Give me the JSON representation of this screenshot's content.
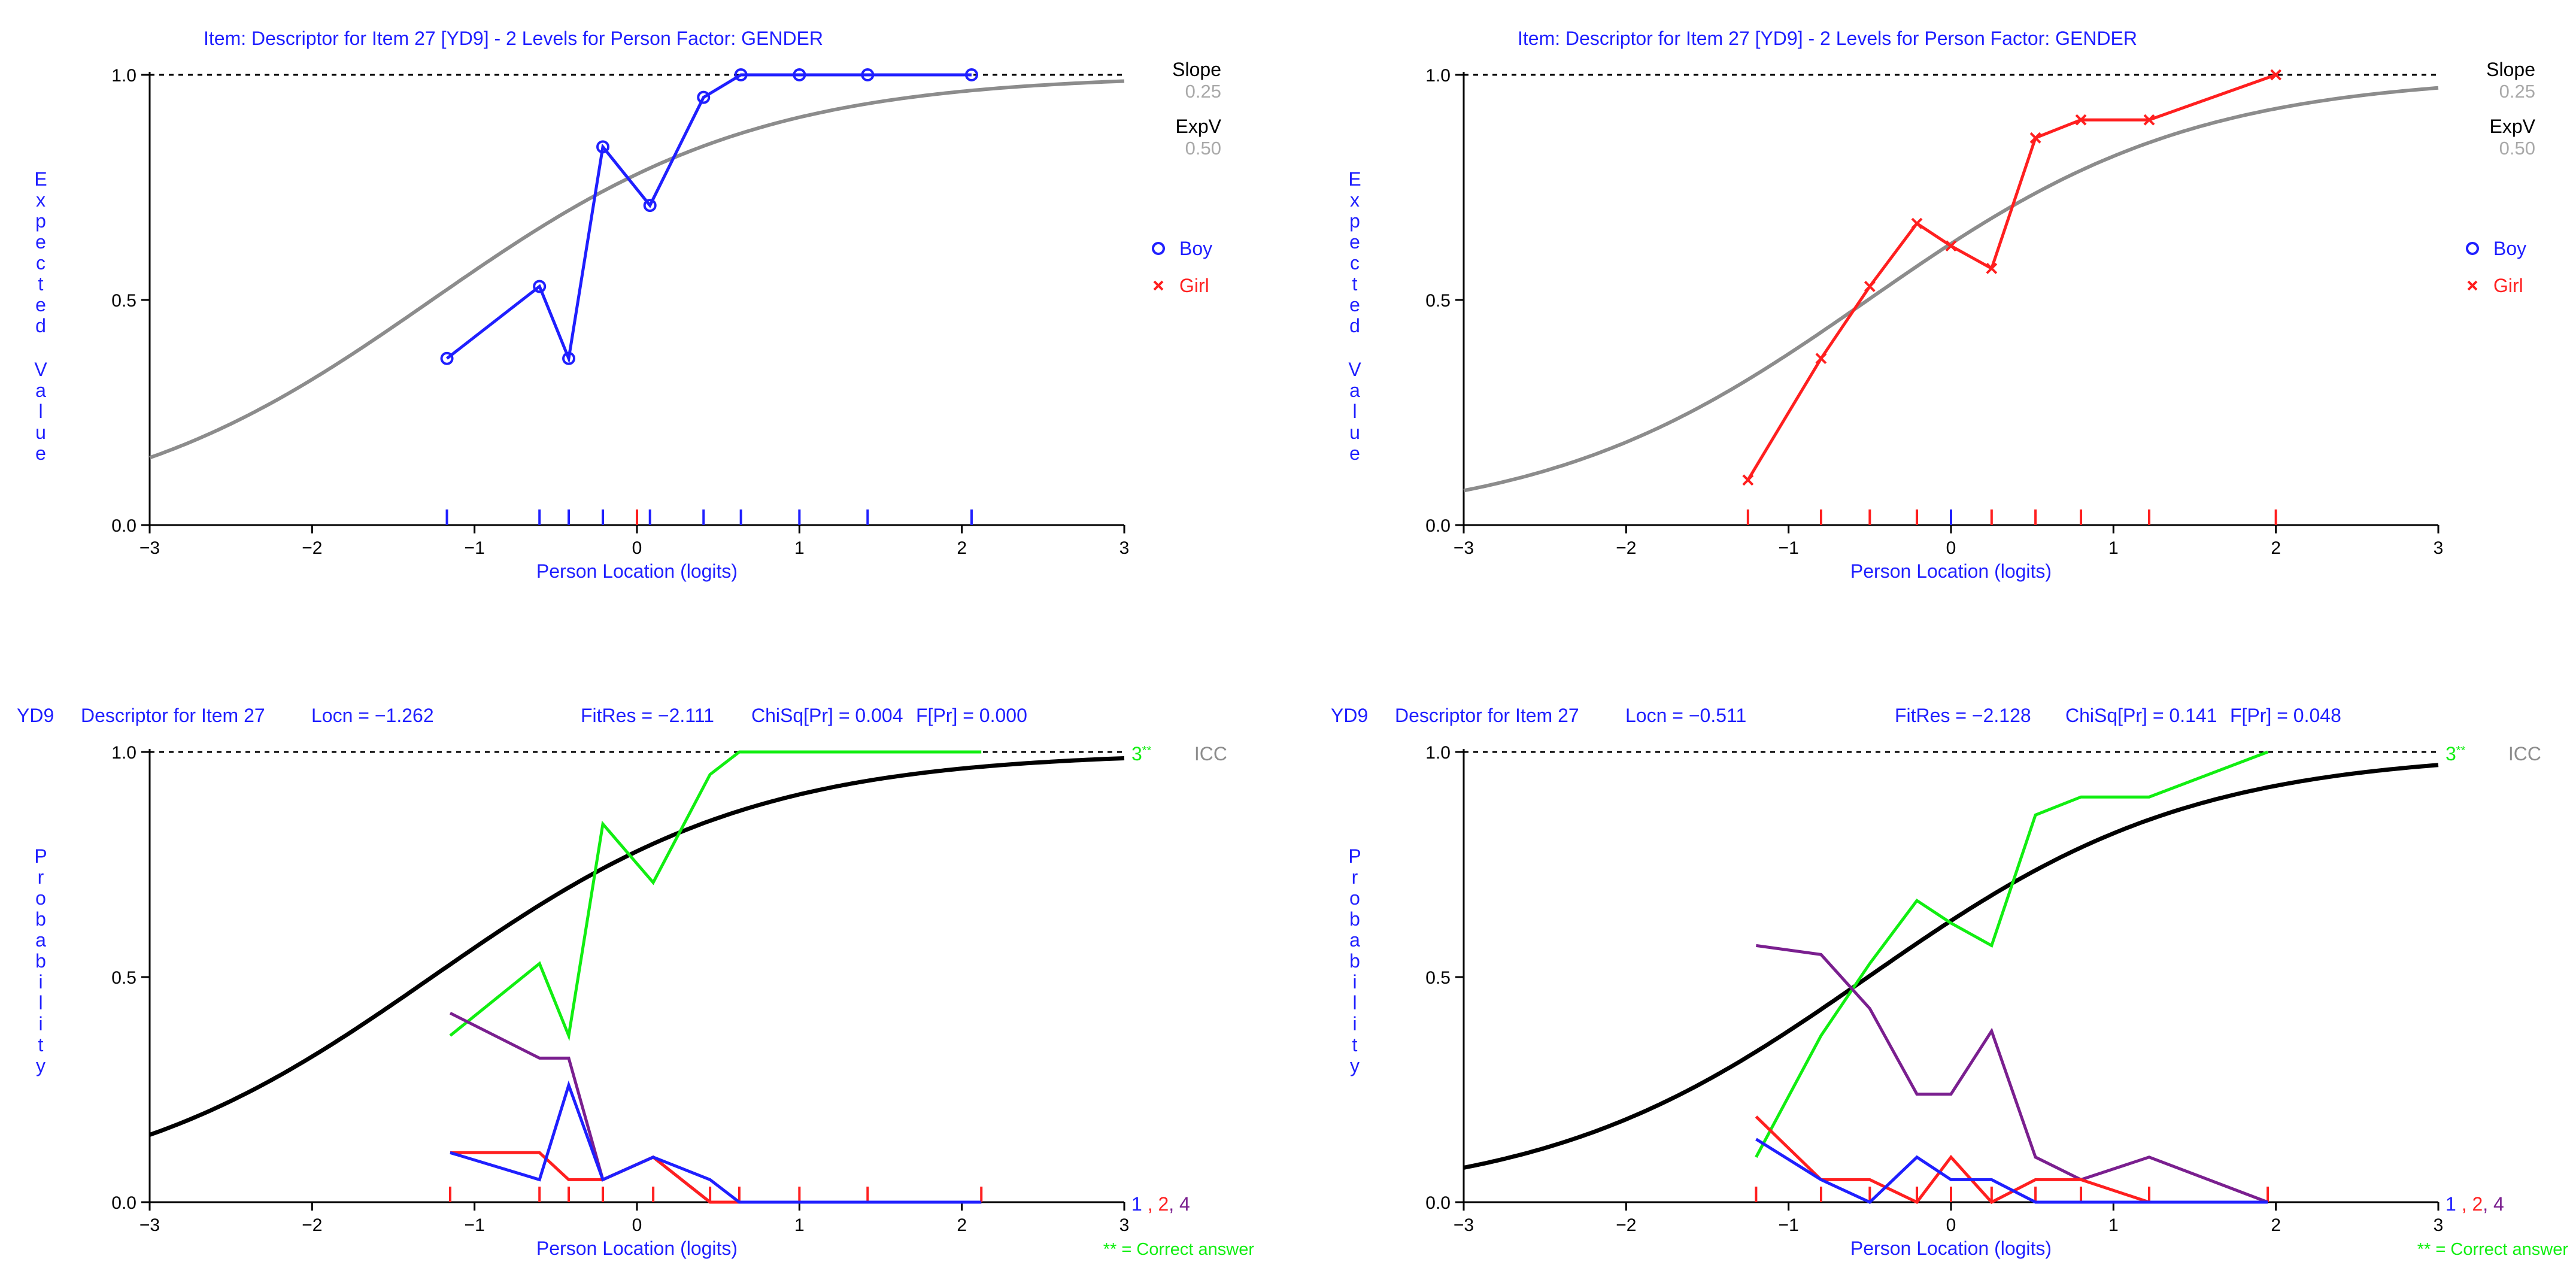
{
  "colors": {
    "blue": "#1f1fff",
    "red": "#ff1f1f",
    "green": "#11ee11",
    "purple": "#7a1f8f",
    "grey": "#8c8c8c",
    "lightgrey": "#a9a9a9",
    "black": "#000000"
  },
  "chart_data": [
    {
      "id": "tl",
      "type": "line",
      "title": "Item: Descriptor for Item 27 [YD9] - 2 Levels for Person Factor: GENDER",
      "xlabel": "Person Location (logits)",
      "ylabel": "Expected Value",
      "xlim": [
        -3,
        3
      ],
      "ylim": [
        0,
        1
      ],
      "xticks": [
        "−3",
        "−2",
        "−1",
        "0",
        "1",
        "2",
        "3"
      ],
      "yticks": [
        "0.0",
        "0.5",
        "1.0"
      ],
      "info": {
        "slope_label": "Slope",
        "slope_value": "0.25",
        "expv_label": "ExpV",
        "expv_value": "0.50"
      },
      "legend": [
        {
          "label": "Boy",
          "marker": "o",
          "color": "blue"
        },
        {
          "label": "Girl",
          "marker": "x",
          "color": "red"
        }
      ],
      "curve": {
        "location": -1.262,
        "discrimination": 1.0,
        "color": "grey"
      },
      "series": [
        {
          "name": "Boy",
          "color": "blue",
          "marker": "o",
          "x": [
            -1.17,
            -0.6,
            -0.42,
            -0.21,
            0.08,
            0.41,
            0.64,
            1.0,
            1.42,
            2.06
          ],
          "y": [
            0.37,
            0.53,
            0.37,
            0.84,
            0.71,
            0.95,
            1.0,
            1.0,
            1.0,
            1.0
          ]
        }
      ],
      "ticks_bottom": [
        {
          "x": -1.17,
          "color": "blue"
        },
        {
          "x": -0.6,
          "color": "blue"
        },
        {
          "x": -0.42,
          "color": "blue"
        },
        {
          "x": -0.21,
          "color": "blue"
        },
        {
          "x": 0.0,
          "color": "red"
        },
        {
          "x": 0.08,
          "color": "blue"
        },
        {
          "x": 0.41,
          "color": "blue"
        },
        {
          "x": 0.64,
          "color": "blue"
        },
        {
          "x": 1.0,
          "color": "blue"
        },
        {
          "x": 1.42,
          "color": "blue"
        },
        {
          "x": 2.06,
          "color": "blue"
        }
      ]
    },
    {
      "id": "tr",
      "type": "line",
      "title": "Item: Descriptor for Item 27 [YD9] - 2 Levels for Person Factor: GENDER",
      "xlabel": "Person Location (logits)",
      "ylabel": "Expected Value",
      "xlim": [
        -3,
        3
      ],
      "ylim": [
        0,
        1
      ],
      "xticks": [
        "−3",
        "−2",
        "−1",
        "0",
        "1",
        "2",
        "3"
      ],
      "yticks": [
        "0.0",
        "0.5",
        "1.0"
      ],
      "info": {
        "slope_label": "Slope",
        "slope_value": "0.25",
        "expv_label": "ExpV",
        "expv_value": "0.50"
      },
      "legend": [
        {
          "label": "Boy",
          "marker": "o",
          "color": "blue"
        },
        {
          "label": "Girl",
          "marker": "x",
          "color": "red"
        }
      ],
      "curve": {
        "location": -0.511,
        "discrimination": 1.0,
        "color": "grey"
      },
      "series": [
        {
          "name": "Girl",
          "color": "red",
          "marker": "x",
          "x": [
            -1.25,
            -0.8,
            -0.5,
            -0.21,
            0.0,
            0.25,
            0.52,
            0.8,
            1.22,
            2.0
          ],
          "y": [
            0.1,
            0.37,
            0.53,
            0.67,
            0.62,
            0.57,
            0.86,
            0.9,
            0.9,
            1.0
          ]
        }
      ],
      "ticks_bottom": [
        {
          "x": -1.25,
          "color": "red"
        },
        {
          "x": -0.8,
          "color": "red"
        },
        {
          "x": -0.5,
          "color": "red"
        },
        {
          "x": -0.21,
          "color": "red"
        },
        {
          "x": 0.0,
          "color": "blue"
        },
        {
          "x": 0.25,
          "color": "red"
        },
        {
          "x": 0.52,
          "color": "red"
        },
        {
          "x": 0.8,
          "color": "red"
        },
        {
          "x": 1.22,
          "color": "red"
        },
        {
          "x": 2.0,
          "color": "red"
        }
      ]
    },
    {
      "id": "bl",
      "type": "line",
      "header": {
        "item": "YD9",
        "descriptor": "Descriptor for Item 27",
        "locn": "Locn = −1.262",
        "fitres": "FitRes = −2.111",
        "chisq": "ChiSq[Pr] = 0.004",
        "fpr": "F[Pr] = 0.000"
      },
      "xlabel": "Person Location (logits)",
      "ylabel": "Probability",
      "xlim": [
        -3,
        3
      ],
      "ylim": [
        0,
        1
      ],
      "xticks": [
        "−3",
        "−2",
        "−1",
        "0",
        "1",
        "2",
        "3"
      ],
      "yticks": [
        "0.0",
        "0.5",
        "1.0"
      ],
      "curve": {
        "location": -1.262,
        "discrimination": 1.0,
        "color": "black",
        "label": "ICC"
      },
      "cat_label": {
        "num": "3",
        "stars": "**"
      },
      "bottom_label": {
        "c1": "1",
        "c2": ", 2",
        "c3": ", 4"
      },
      "footnote": "** = Correct answer",
      "series": [
        {
          "name": "3",
          "color": "green",
          "x": [
            -1.15,
            -0.6,
            -0.42,
            -0.21,
            0.1,
            0.45,
            0.63,
            1.0,
            1.42,
            2.12
          ],
          "y": [
            0.37,
            0.53,
            0.37,
            0.84,
            0.71,
            0.95,
            1.0,
            1.0,
            1.0,
            1.0
          ]
        },
        {
          "name": "4",
          "color": "purple",
          "x": [
            -1.15,
            -0.6,
            -0.42,
            -0.21,
            0.1,
            0.45,
            0.63,
            1.0,
            1.42,
            2.12
          ],
          "y": [
            0.42,
            0.32,
            0.32,
            0.05,
            0.1,
            0.0,
            0.0,
            0.0,
            0.0,
            0.0
          ]
        },
        {
          "name": "2",
          "color": "red",
          "x": [
            -1.15,
            -0.6,
            -0.42,
            -0.21,
            0.1,
            0.45,
            0.63,
            1.0,
            1.42,
            2.12
          ],
          "y": [
            0.11,
            0.11,
            0.05,
            0.05,
            0.1,
            0.0,
            0.0,
            0.0,
            0.0,
            0.0
          ]
        },
        {
          "name": "1",
          "color": "blue",
          "x": [
            -1.15,
            -0.6,
            -0.42,
            -0.21,
            0.1,
            0.45,
            0.63,
            1.0,
            1.42,
            2.12
          ],
          "y": [
            0.11,
            0.05,
            0.26,
            0.05,
            0.1,
            0.05,
            0.0,
            0.0,
            0.0,
            0.0
          ]
        }
      ],
      "ticks_bottom": [
        {
          "x": -1.15,
          "color": "red"
        },
        {
          "x": -0.6,
          "color": "red"
        },
        {
          "x": -0.42,
          "color": "red"
        },
        {
          "x": -0.21,
          "color": "red"
        },
        {
          "x": 0.1,
          "color": "red"
        },
        {
          "x": 0.45,
          "color": "red"
        },
        {
          "x": 0.63,
          "color": "red"
        },
        {
          "x": 1.0,
          "color": "red"
        },
        {
          "x": 1.42,
          "color": "red"
        },
        {
          "x": 2.12,
          "color": "red"
        }
      ]
    },
    {
      "id": "br",
      "type": "line",
      "header": {
        "item": "YD9",
        "descriptor": "Descriptor for Item 27",
        "locn": "Locn = −0.511",
        "fitres": "FitRes = −2.128",
        "chisq": "ChiSq[Pr] = 0.141",
        "fpr": "F[Pr] = 0.048"
      },
      "xlabel": "Person Location (logits)",
      "ylabel": "Probability",
      "xlim": [
        -3,
        3
      ],
      "ylim": [
        0,
        1
      ],
      "xticks": [
        "−3",
        "−2",
        "−1",
        "0",
        "1",
        "2",
        "3"
      ],
      "yticks": [
        "0.0",
        "0.5",
        "1.0"
      ],
      "curve": {
        "location": -0.511,
        "discrimination": 1.0,
        "color": "black",
        "label": "ICC"
      },
      "cat_label": {
        "num": "3",
        "stars": "**"
      },
      "bottom_label": {
        "c1": "1",
        "c2": ", 2",
        "c3": ", 4"
      },
      "footnote": "** = Correct answer",
      "series": [
        {
          "name": "3",
          "color": "green",
          "x": [
            -1.2,
            -0.8,
            -0.5,
            -0.21,
            0.0,
            0.25,
            0.52,
            0.8,
            1.22,
            1.95
          ],
          "y": [
            0.1,
            0.37,
            0.53,
            0.67,
            0.62,
            0.57,
            0.86,
            0.9,
            0.9,
            1.0
          ]
        },
        {
          "name": "4",
          "color": "purple",
          "x": [
            -1.2,
            -0.8,
            -0.5,
            -0.21,
            0.0,
            0.25,
            0.52,
            0.8,
            1.22,
            1.95
          ],
          "y": [
            0.57,
            0.55,
            0.43,
            0.24,
            0.24,
            0.38,
            0.1,
            0.05,
            0.1,
            0.0
          ]
        },
        {
          "name": "2",
          "color": "red",
          "x": [
            -1.2,
            -0.8,
            -0.5,
            -0.21,
            0.0,
            0.25,
            0.52,
            0.8,
            1.22,
            1.95
          ],
          "y": [
            0.19,
            0.05,
            0.05,
            0.0,
            0.1,
            0.0,
            0.05,
            0.05,
            0.0,
            0.0
          ]
        },
        {
          "name": "1",
          "color": "blue",
          "x": [
            -1.2,
            -0.8,
            -0.5,
            -0.21,
            0.0,
            0.25,
            0.52,
            0.8,
            1.22,
            1.95
          ],
          "y": [
            0.14,
            0.05,
            0.0,
            0.1,
            0.05,
            0.05,
            0.0,
            0.0,
            0.0,
            0.0
          ]
        }
      ],
      "ticks_bottom": [
        {
          "x": -1.2,
          "color": "red"
        },
        {
          "x": -0.8,
          "color": "red"
        },
        {
          "x": -0.5,
          "color": "red"
        },
        {
          "x": -0.21,
          "color": "red"
        },
        {
          "x": 0.0,
          "color": "red"
        },
        {
          "x": 0.25,
          "color": "red"
        },
        {
          "x": 0.52,
          "color": "red"
        },
        {
          "x": 0.8,
          "color": "red"
        },
        {
          "x": 1.22,
          "color": "red"
        },
        {
          "x": 1.95,
          "color": "red"
        }
      ]
    }
  ]
}
